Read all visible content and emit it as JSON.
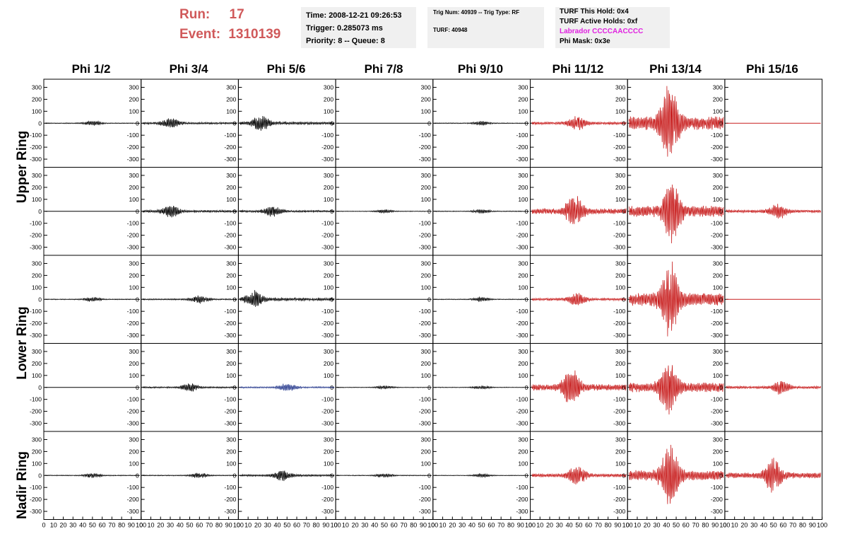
{
  "header": {
    "run_label": "Run:",
    "run_value": "17",
    "event_label": "Event:",
    "event_value": "1310139"
  },
  "info_boxes": {
    "time": [
      "Time: 2008-12-21 09:26:53",
      "Trigger: 0.285073 ms",
      "Priority: 8 -- Queue: 8"
    ],
    "trig": [
      "Trig Num: 40939 -- Trig Type: RF",
      "TURF: 40948"
    ],
    "turf": {
      "this_hold": "TURF This Hold: 0x4",
      "active_holds": "TURF Active Holds: 0xf",
      "labrador": "Labrador CCCCAACCCC",
      "phi_mask": "Phi Mask: 0x3e"
    }
  },
  "colors": {
    "header_red": "#d0595a",
    "labrador_magenta": "#e020e0",
    "trace_black": "#000000",
    "trace_red": "#c81e1e",
    "trace_blue": "#2a3d8f",
    "info_bg": "#f0f0f0"
  },
  "chart_data": {
    "type": "line",
    "columns": [
      "Phi 1/2",
      "Phi 3/4",
      "Phi 5/6",
      "Phi 7/8",
      "Phi 9/10",
      "Phi 11/12",
      "Phi 13/14",
      "Phi 15/16"
    ],
    "rows": [
      "Upper Ring",
      "Lower Ring",
      "Nadir Ring"
    ],
    "ylim": [
      -350,
      350
    ],
    "xlim": [
      0,
      100
    ],
    "y_ticks": [
      "300",
      "200",
      "100",
      "0",
      "-100",
      "-200",
      "-300"
    ],
    "x_ticks": [
      "0",
      "10",
      "20",
      "30",
      "40",
      "50",
      "60",
      "70",
      "80",
      "90",
      "100"
    ],
    "panels": [
      {
        "amp": [
          20,
          45,
          65,
          0,
          18,
          60,
          320,
          0
        ],
        "flat": [
          0,
          0,
          0,
          1,
          0,
          0,
          0,
          1
        ],
        "center": [
          50,
          30,
          22,
          50,
          50,
          48,
          43,
          50
        ],
        "color": [
          "black",
          "black",
          "black",
          "black",
          "black",
          "red",
          "red",
          "red"
        ]
      },
      {
        "amp": [
          0,
          50,
          45,
          15,
          18,
          130,
          260,
          65
        ],
        "flat": [
          1,
          0,
          0,
          0,
          0,
          0,
          0,
          0
        ],
        "center": [
          50,
          30,
          35,
          50,
          50,
          45,
          45,
          55
        ],
        "color": [
          "black",
          "black",
          "black",
          "black",
          "black",
          "red",
          "red",
          "red"
        ]
      },
      {
        "amp": [
          20,
          30,
          70,
          0,
          18,
          55,
          310,
          0
        ],
        "flat": [
          0,
          0,
          0,
          1,
          0,
          0,
          0,
          1
        ],
        "center": [
          50,
          60,
          15,
          50,
          50,
          48,
          43,
          50
        ],
        "color": [
          "black",
          "black",
          "black",
          "black",
          "black",
          "red",
          "red",
          "red"
        ]
      },
      {
        "amp": [
          0,
          35,
          35,
          15,
          15,
          150,
          230,
          60
        ],
        "flat": [
          1,
          0,
          0,
          0,
          0,
          0,
          0,
          0
        ],
        "center": [
          50,
          50,
          50,
          50,
          50,
          42,
          42,
          58
        ],
        "color": [
          "black",
          "black",
          "blue",
          "black",
          "black",
          "red",
          "red",
          "red"
        ]
      },
      {
        "amp": [
          20,
          22,
          45,
          18,
          15,
          80,
          250,
          140
        ],
        "flat": [
          0,
          0,
          0,
          0,
          0,
          0,
          0,
          0
        ],
        "center": [
          50,
          60,
          45,
          50,
          50,
          48,
          43,
          50
        ],
        "color": [
          "black",
          "black",
          "black",
          "black",
          "black",
          "red",
          "red",
          "red"
        ]
      }
    ]
  }
}
